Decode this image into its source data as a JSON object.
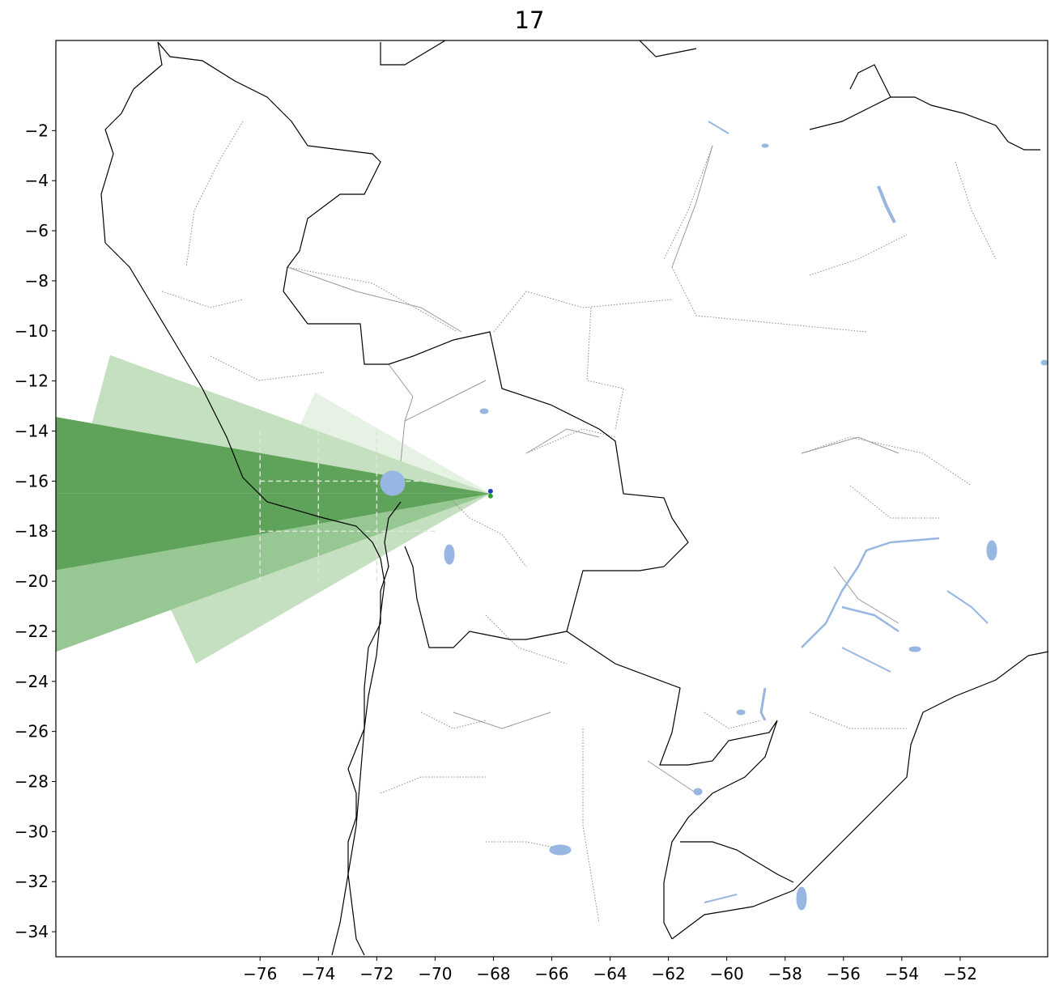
{
  "title": "17",
  "map": {
    "projection": "PlateCarree",
    "extent": {
      "lon_min": -83,
      "lon_max": -49,
      "lat_min": -35,
      "lat_max": 1.6
    },
    "xticks": [
      -76,
      -74,
      -72,
      -70,
      -68,
      -66,
      -64,
      -62,
      -60,
      -58,
      -56,
      -54,
      -52
    ],
    "yticks": [
      -2,
      -4,
      -6,
      -8,
      -10,
      -12,
      -14,
      -16,
      -18,
      -20,
      -22,
      -24,
      -26,
      -28,
      -30,
      -32,
      -34
    ],
    "xtick_labels": [
      "−76",
      "−74",
      "−72",
      "−70",
      "−68",
      "−66",
      "−64",
      "−62",
      "−60",
      "−58",
      "−56",
      "−54",
      "−52"
    ],
    "ytick_labels": [
      "−2",
      "−4",
      "−6",
      "−8",
      "−10",
      "−12",
      "−14",
      "−16",
      "−18",
      "−20",
      "−22",
      "−24",
      "−26",
      "−28",
      "−30",
      "−32",
      "−34"
    ],
    "layers": [
      "coastline",
      "country-borders",
      "state-borders",
      "lakes",
      "rivers",
      "gridlines"
    ],
    "colors": {
      "land": "#ffffff",
      "coastline": "#000000",
      "border": "#7f7f7f",
      "lake": "#97b6e1",
      "sector_dark": "#5fa35a",
      "sector_mid": "#97c793",
      "sector_light": "#c5e0c0",
      "sector_faint": "#e6f2e3",
      "gridline": "#d9e8d6",
      "origin_blue": "#1f3fbf",
      "origin_green": "#2ca02c"
    },
    "origin": {
      "lon": -68.1,
      "lat": -16.5
    }
  }
}
